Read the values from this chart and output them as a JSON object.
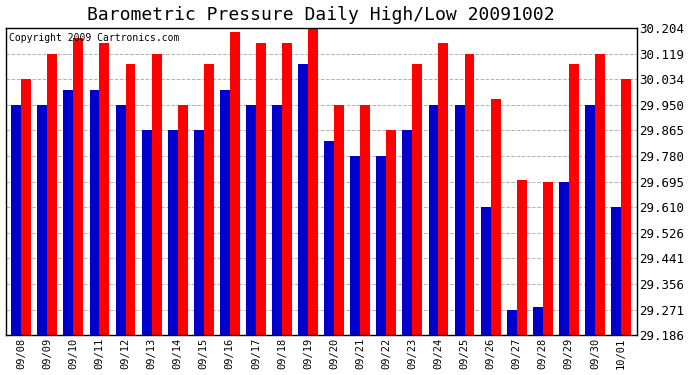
{
  "title": "Barometric Pressure Daily High/Low 20091002",
  "copyright": "Copyright 2009 Cartronics.com",
  "dates": [
    "09/08",
    "09/09",
    "09/10",
    "09/11",
    "09/12",
    "09/13",
    "09/14",
    "09/15",
    "09/16",
    "09/17",
    "09/18",
    "09/19",
    "09/20",
    "09/21",
    "09/22",
    "09/23",
    "09/24",
    "09/25",
    "09/26",
    "09/27",
    "09/28",
    "09/29",
    "09/30",
    "10/01"
  ],
  "highs": [
    30.034,
    30.119,
    30.17,
    30.153,
    30.085,
    30.119,
    29.95,
    30.085,
    30.19,
    30.153,
    30.153,
    30.2,
    29.95,
    29.95,
    29.865,
    30.085,
    30.153,
    30.119,
    29.97,
    29.7,
    29.695,
    30.085,
    30.119,
    30.034
  ],
  "lows": [
    29.95,
    29.95,
    30.0,
    30.0,
    29.95,
    29.865,
    29.865,
    29.865,
    30.0,
    29.95,
    29.95,
    30.085,
    29.83,
    29.78,
    29.78,
    29.865,
    29.95,
    29.95,
    29.61,
    29.271,
    29.28,
    29.695,
    29.95,
    29.61
  ],
  "high_color": "#ff0000",
  "low_color": "#0000cc",
  "background_color": "#ffffff",
  "plot_bg_color": "#ffffff",
  "grid_color": "#aaaaaa",
  "title_fontsize": 13,
  "ylabel_fontsize": 9,
  "xlabel_fontsize": 7.5,
  "yticks": [
    29.186,
    29.271,
    29.356,
    29.441,
    29.526,
    29.61,
    29.695,
    29.78,
    29.865,
    29.95,
    30.034,
    30.119,
    30.204
  ],
  "ymin": 29.186,
  "ymax": 30.204
}
